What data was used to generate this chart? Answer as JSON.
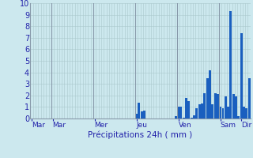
{
  "background_color": "#cce8ee",
  "plot_bg_color": "#cce8ee",
  "bar_color": "#1a5fbf",
  "grid_color": "#aac8cc",
  "vline_color": "#8899aa",
  "tick_label_color": "#2222aa",
  "xlabel": "Précipitations 24h ( mm )",
  "xlabel_color": "#2222aa",
  "ylim": [
    0,
    10
  ],
  "yticks": [
    0,
    1,
    2,
    3,
    4,
    5,
    6,
    7,
    8,
    9,
    10
  ],
  "n_bars": 84,
  "values": [
    0,
    0,
    0,
    0,
    0,
    0,
    0,
    0,
    0,
    0,
    0,
    0,
    0,
    0,
    0,
    0,
    0,
    0,
    0,
    0,
    0,
    0,
    0,
    0,
    0,
    0,
    0,
    0,
    0,
    0,
    0,
    0,
    0,
    0,
    0,
    0,
    0,
    0,
    0,
    0,
    0.4,
    1.4,
    0.6,
    0.7,
    0.0,
    0.0,
    0.0,
    0,
    0,
    0,
    0,
    0,
    0,
    0,
    0,
    0.2,
    1.0,
    1.0,
    0.1,
    1.8,
    1.5,
    0.1,
    0.3,
    0.9,
    1.2,
    1.3,
    2.2,
    3.5,
    4.2,
    1.2,
    2.2,
    2.1,
    1.0,
    0.9,
    1.9,
    1.0,
    9.3,
    2.1,
    1.9,
    0.2,
    7.4,
    1.0,
    0.9,
    3.5
  ],
  "day_tick_positions": [
    0.5,
    8,
    20,
    40,
    56,
    70,
    80
  ],
  "day_labels": [
    "Mar",
    "Mar",
    "Mer",
    "Jeu",
    "Ven",
    "Sam",
    "Dir"
  ],
  "vline_positions": [
    8,
    24,
    40,
    56,
    72
  ],
  "figsize": [
    3.2,
    2.0
  ],
  "dpi": 100
}
